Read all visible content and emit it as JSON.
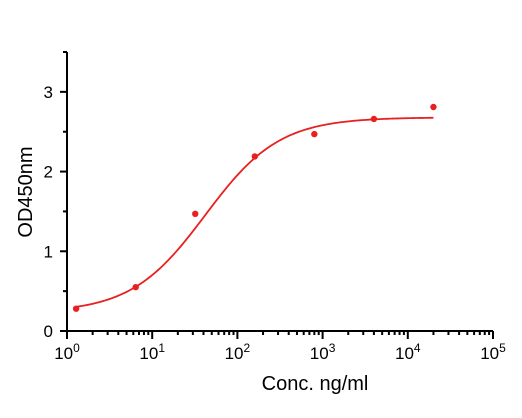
{
  "chart_data": {
    "type": "scatter",
    "title": "",
    "xlabel": "Conc. ng/ml",
    "ylabel": "OD450nm",
    "x_scale": "log",
    "xlim": [
      1,
      100000
    ],
    "ylim": [
      0,
      3.5
    ],
    "grid": false,
    "x_ticks": [
      {
        "value": 1,
        "base": "10",
        "exp": "0"
      },
      {
        "value": 10,
        "base": "10",
        "exp": "1"
      },
      {
        "value": 100,
        "base": "10",
        "exp": "2"
      },
      {
        "value": 1000,
        "base": "10",
        "exp": "3"
      },
      {
        "value": 10000,
        "base": "10",
        "exp": "4"
      },
      {
        "value": 100000,
        "base": "10",
        "exp": "5"
      }
    ],
    "y_ticks": [
      {
        "value": 0,
        "label": "0"
      },
      {
        "value": 1,
        "label": "1"
      },
      {
        "value": 2,
        "label": "2"
      },
      {
        "value": 3,
        "label": "3"
      }
    ],
    "series": [
      {
        "color": "#e8201f",
        "x": [
          1.28,
          6.4,
          32,
          160,
          800,
          4000,
          20000
        ],
        "y": [
          0.28,
          0.55,
          1.47,
          2.19,
          2.47,
          2.66,
          2.81
        ],
        "fit": {
          "bottom": 0.23,
          "top": 2.68,
          "ec50": 42,
          "hill": 1.0,
          "x_range": [
            1.28,
            20000
          ]
        }
      }
    ]
  }
}
